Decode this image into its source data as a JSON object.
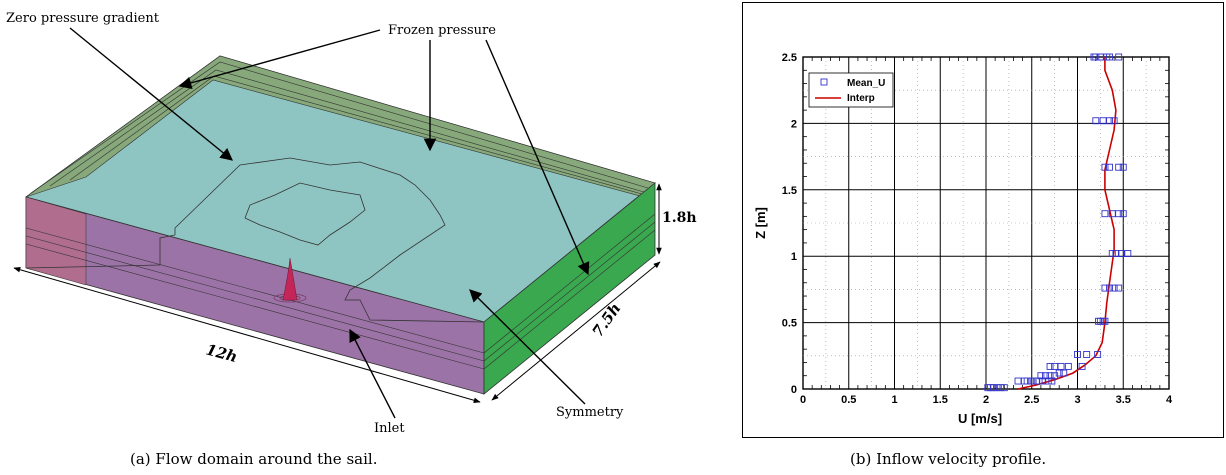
{
  "figure_a": {
    "labels": {
      "zero_pressure_gradient": "Zero pressure gradient",
      "frozen_pressure": "Frozen pressure",
      "height": "1.8h",
      "length": "12h",
      "width": "7.5h",
      "inlet": "Inlet",
      "symmetry": "Symmetry"
    },
    "caption": "(a) Flow domain around the sail.",
    "colors": {
      "top_face": "#8ec5c2",
      "frozen_strip": "#86a87a",
      "inlet_face": "#9c73a6",
      "side_face": "#3aa84f",
      "sail": "#c4265a"
    }
  },
  "figure_b": {
    "caption": "(b) Inflow velocity profile.",
    "chart_data": {
      "type": "scatter",
      "xlabel": "U [m/s]",
      "ylabel": "Z [m]",
      "xlim": [
        0,
        4
      ],
      "ylim": [
        0,
        2.5
      ],
      "xticks": [
        "0",
        "0.5",
        "1",
        "1.5",
        "2",
        "2.5",
        "3",
        "3.5",
        "4"
      ],
      "yticks": [
        "0",
        "0.5",
        "1",
        "1.5",
        "2",
        "2.5"
      ],
      "grid": true,
      "legend_position": "top-left",
      "series": [
        {
          "name": "Mean_U",
          "marker": "square",
          "color": "#3333cc",
          "x": [
            2.02,
            2.05,
            2.08,
            2.12,
            2.16,
            2.2,
            2.35,
            2.42,
            2.45,
            2.5,
            2.55,
            2.6,
            2.65,
            2.7,
            2.75,
            2.58,
            2.62,
            2.68,
            2.72,
            2.8,
            2.85,
            2.7,
            2.75,
            2.82,
            2.9,
            3.05,
            3.1,
            3.0,
            3.22,
            3.25,
            3.28,
            3.3,
            3.23,
            3.3,
            3.35,
            3.4,
            3.45,
            3.38,
            3.42,
            3.48,
            3.55,
            3.3,
            3.38,
            3.45,
            3.5,
            3.3,
            3.35,
            3.45,
            3.5,
            3.2,
            3.28,
            3.35,
            3.4,
            3.18,
            3.25,
            3.32,
            3.35,
            3.2,
            3.25,
            3.45
          ],
          "y": [
            0.01,
            0.01,
            0.01,
            0.01,
            0.01,
            0.01,
            0.06,
            0.06,
            0.06,
            0.06,
            0.06,
            0.1,
            0.1,
            0.1,
            0.1,
            0.06,
            0.06,
            0.06,
            0.06,
            0.12,
            0.12,
            0.17,
            0.17,
            0.17,
            0.17,
            0.17,
            0.26,
            0.26,
            0.26,
            0.51,
            0.51,
            0.51,
            0.51,
            0.76,
            0.76,
            0.76,
            0.76,
            1.02,
            1.02,
            1.02,
            1.02,
            1.32,
            1.32,
            1.32,
            1.32,
            1.67,
            1.67,
            1.67,
            1.67,
            2.02,
            2.02,
            2.02,
            2.02,
            2.5,
            2.5,
            2.5,
            2.5,
            2.5,
            2.5,
            2.5
          ]
        },
        {
          "name": "Interp",
          "marker": "line",
          "color": "#cc0000",
          "x": [
            2.35,
            2.55,
            2.75,
            2.95,
            3.08,
            3.2,
            3.27,
            3.3,
            3.32,
            3.35,
            3.38,
            3.4,
            3.4,
            3.35,
            3.3,
            3.3,
            3.35,
            3.4,
            3.42,
            3.38,
            3.3,
            3.3
          ],
          "y": [
            0.0,
            0.03,
            0.07,
            0.12,
            0.18,
            0.25,
            0.35,
            0.5,
            0.65,
            0.8,
            0.95,
            1.05,
            1.2,
            1.35,
            1.5,
            1.65,
            1.8,
            1.95,
            2.1,
            2.25,
            2.4,
            2.5
          ]
        }
      ]
    }
  }
}
